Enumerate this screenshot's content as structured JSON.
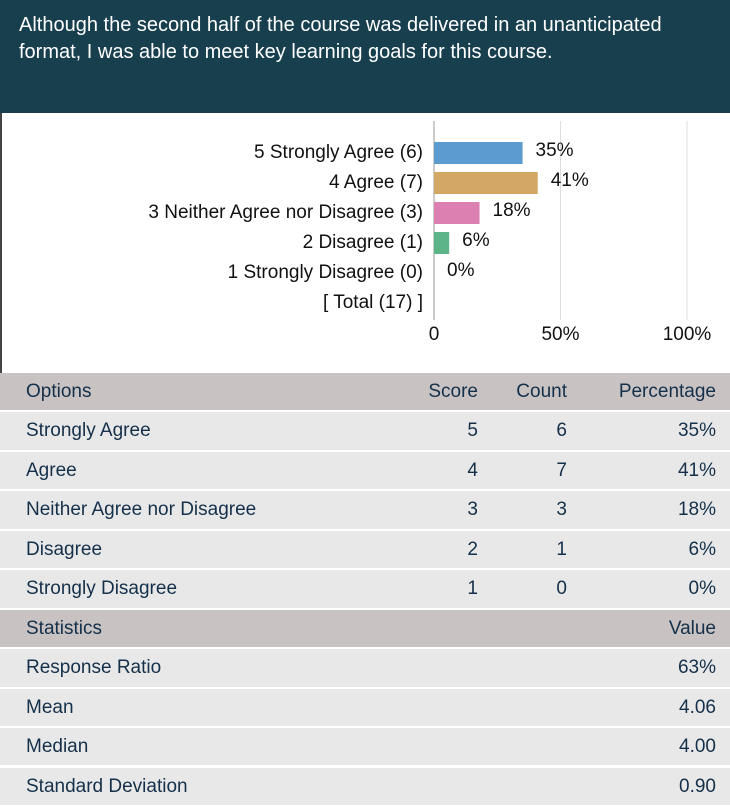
{
  "header": {
    "title": "Although the second half of the course was delivered in an unanticipated format, I was able to meet key learning goals for this course."
  },
  "chart_data": {
    "type": "bar",
    "orientation": "horizontal",
    "categories": [
      "5 Strongly Agree (6)",
      "4 Agree (7)",
      "3 Neither Agree nor Disagree (3)",
      "2 Disagree (1)",
      "1 Strongly Disagree (0)",
      "[ Total (17) ]"
    ],
    "values": [
      35,
      41,
      18,
      6,
      0,
      null
    ],
    "value_labels": [
      "35%",
      "41%",
      "18%",
      "6%",
      "0%",
      null
    ],
    "colors": [
      "#5b9bcf",
      "#d3a764",
      "#dc80b1",
      "#5db488",
      "#999999",
      null
    ],
    "xlim": [
      0,
      100
    ],
    "xticks": [
      0,
      {
        "value": 50,
        "label": "50%"
      },
      {
        "value": 100,
        "label": "100%"
      }
    ],
    "grid": true
  },
  "options_table": {
    "columns": [
      "Options",
      "Score",
      "Count",
      "Percentage"
    ],
    "rows": [
      [
        "Strongly Agree",
        "5",
        "6",
        "35%"
      ],
      [
        "Agree",
        "4",
        "7",
        "41%"
      ],
      [
        "Neither Agree nor Disagree",
        "3",
        "3",
        "18%"
      ],
      [
        "Disagree",
        "2",
        "1",
        "6%"
      ],
      [
        "Strongly Disagree",
        "1",
        "0",
        "0%"
      ]
    ]
  },
  "stats_table": {
    "columns": [
      "Statistics",
      "Value"
    ],
    "rows": [
      [
        "Response Ratio",
        "63%"
      ],
      [
        "Mean",
        "4.06"
      ],
      [
        "Median",
        "4.00"
      ],
      [
        "Standard Deviation",
        "0.90"
      ]
    ]
  }
}
